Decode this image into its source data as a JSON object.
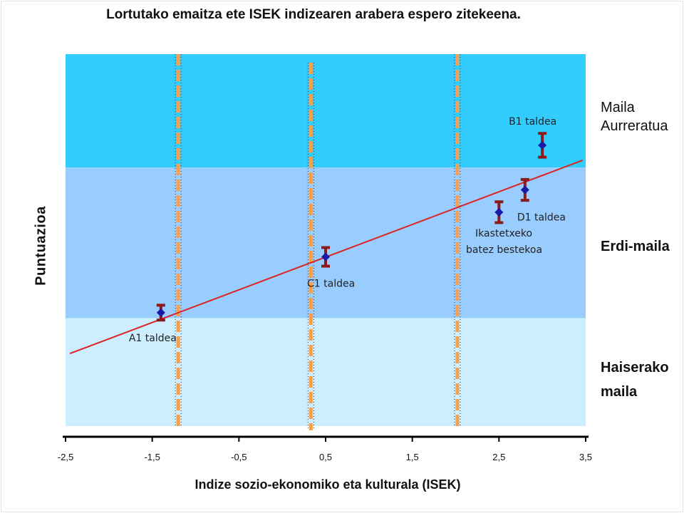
{
  "chart_data": {
    "type": "scatter",
    "title": "Lortutako emaitza ete ISEK indizearen arabera espero zitekeena.",
    "xlabel": "Indize sozio-ekonomiko eta kulturala (ISEK)",
    "ylabel": "Puntuazioa",
    "xlim": [
      -2.5,
      3.5
    ],
    "x_ticks": [
      "-2,5",
      "-1,5",
      "-0,5",
      "0,5",
      "1,5",
      "2,5",
      "3,5"
    ],
    "y_relative_range": [
      0,
      100
    ],
    "zones": [
      {
        "label_line1": "Maila",
        "label_line2": "Aurreratua",
        "from": 69.5,
        "to": 100,
        "color": "#33ccff"
      },
      {
        "label_line1": "Erdi-maila",
        "label_line2": "",
        "from": 29,
        "to": 69.5,
        "color": "#99ccff"
      },
      {
        "label_line1": "Haiserako",
        "label_line2": "maila",
        "from": 0,
        "to": 29,
        "color": "#cceeff"
      }
    ],
    "vertical_cutoffs": [
      -1.2,
      0.33,
      2.02
    ],
    "points": [
      {
        "label": "A1 taldea",
        "x": -1.4,
        "y": 30.5,
        "err": 2.0
      },
      {
        "label": "C1 taldea",
        "x": 0.5,
        "y": 45.5,
        "err": 2.5
      },
      {
        "label": "",
        "x": 2.5,
        "y": 57.5,
        "err": 2.8
      },
      {
        "label": "D1 taldea",
        "x": 2.8,
        "y": 63.5,
        "err": 2.8
      },
      {
        "label": "B1 taldea",
        "x": 3.0,
        "y": 75.5,
        "err": 3.2
      }
    ],
    "annotations": [
      {
        "line1": "Ikastetxeko",
        "line2": "batez bestekoa"
      }
    ],
    "trendline": {
      "x": [
        -2.5,
        3.5
      ],
      "y": [
        19.5,
        71.5
      ],
      "color": "#dd2222"
    },
    "colors": {
      "marker": "#1a1aa6",
      "errorbar": "#8b1a1a",
      "cutoff": "#f5a050"
    }
  }
}
